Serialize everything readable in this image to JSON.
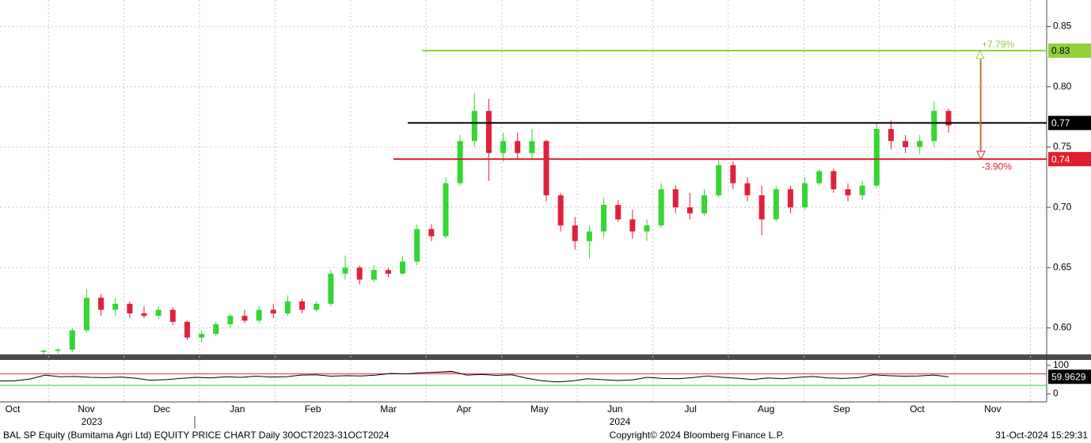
{
  "chart_data": {
    "type": "candlestick",
    "title": "BAL SP Equity (Bumitama Agri Ltd) EQUITY PRICE CHART  Daily 30OCT2023-31OCT2024",
    "source": "Copyright© 2024 Bloomberg Finance L.P.",
    "timestamp": "31-Oct-2024 15:29:31",
    "x_labels": [
      "Oct",
      "Nov",
      "Dec",
      "Jan",
      "Feb",
      "Mar",
      "Apr",
      "May",
      "Jun",
      "Jul",
      "Aug",
      "Sep",
      "Oct",
      "Nov"
    ],
    "years": [
      "2023",
      "2024"
    ],
    "up_color": "#33d633",
    "down_color": "#e0203c",
    "ylim": [
      0.578,
      0.872
    ],
    "yticks": [
      {
        "value": 0.6,
        "label": "0.60"
      },
      0.65,
      {
        "value": 0.7,
        "label": "0.70"
      },
      0.75,
      {
        "value": 0.8,
        "label": "0.80"
      },
      0.85
    ],
    "grid": true,
    "open": [
      0.58,
      0.581,
      0.582,
      0.598,
      0.625,
      0.615,
      0.62,
      0.612,
      0.61,
      0.615,
      0.605,
      0.592,
      0.595,
      0.603,
      0.61,
      0.606,
      0.615,
      0.612,
      0.622,
      0.615,
      0.62,
      0.645,
      0.65,
      0.64,
      0.648,
      0.645,
      0.655,
      0.682,
      0.676,
      0.72,
      0.755,
      0.78,
      0.745,
      0.755,
      0.745,
      0.755,
      0.71,
      0.685,
      0.672,
      0.68,
      0.702,
      0.69,
      0.68,
      0.685,
      0.715,
      0.7,
      0.695,
      0.71,
      0.735,
      0.72,
      0.71,
      0.69,
      0.715,
      0.7,
      0.72,
      0.73,
      0.715,
      0.71,
      0.718,
      0.765,
      0.755,
      0.75,
      0.755,
      0.78
    ],
    "high": [
      0.582,
      0.583,
      0.6,
      0.632,
      0.628,
      0.625,
      0.622,
      0.618,
      0.618,
      0.617,
      0.606,
      0.598,
      0.605,
      0.612,
      0.615,
      0.618,
      0.62,
      0.627,
      0.624,
      0.622,
      0.648,
      0.66,
      0.652,
      0.652,
      0.65,
      0.66,
      0.686,
      0.686,
      0.725,
      0.76,
      0.795,
      0.79,
      0.762,
      0.762,
      0.765,
      0.756,
      0.712,
      0.692,
      0.685,
      0.708,
      0.706,
      0.698,
      0.69,
      0.72,
      0.718,
      0.712,
      0.715,
      0.74,
      0.738,
      0.725,
      0.718,
      0.718,
      0.718,
      0.725,
      0.732,
      0.732,
      0.72,
      0.722,
      0.77,
      0.772,
      0.76,
      0.76,
      0.788,
      0.782
    ],
    "low": [
      0.578,
      0.579,
      0.58,
      0.596,
      0.61,
      0.61,
      0.608,
      0.608,
      0.607,
      0.602,
      0.59,
      0.588,
      0.593,
      0.6,
      0.604,
      0.604,
      0.608,
      0.61,
      0.612,
      0.613,
      0.618,
      0.64,
      0.636,
      0.638,
      0.642,
      0.644,
      0.652,
      0.672,
      0.674,
      0.718,
      0.75,
      0.722,
      0.738,
      0.74,
      0.74,
      0.705,
      0.68,
      0.665,
      0.657,
      0.675,
      0.688,
      0.674,
      0.672,
      0.683,
      0.695,
      0.69,
      0.693,
      0.708,
      0.715,
      0.705,
      0.677,
      0.688,
      0.695,
      0.698,
      0.718,
      0.712,
      0.705,
      0.706,
      0.716,
      0.748,
      0.745,
      0.744,
      0.75,
      0.762
    ],
    "close": [
      0.581,
      0.582,
      0.598,
      0.625,
      0.615,
      0.62,
      0.612,
      0.61,
      0.615,
      0.605,
      0.592,
      0.595,
      0.603,
      0.61,
      0.606,
      0.615,
      0.612,
      0.622,
      0.615,
      0.62,
      0.645,
      0.65,
      0.64,
      0.648,
      0.645,
      0.655,
      0.682,
      0.676,
      0.72,
      0.755,
      0.78,
      0.745,
      0.755,
      0.745,
      0.755,
      0.71,
      0.685,
      0.672,
      0.68,
      0.702,
      0.69,
      0.68,
      0.685,
      0.715,
      0.7,
      0.695,
      0.71,
      0.735,
      0.72,
      0.71,
      0.69,
      0.715,
      0.7,
      0.72,
      0.73,
      0.715,
      0.71,
      0.718,
      0.765,
      0.755,
      0.75,
      0.755,
      0.78,
      0.768
    ],
    "levels": [
      {
        "value": 0.83,
        "label": "0.83",
        "color": "#8fd13a",
        "text_color": "#000000"
      },
      {
        "value": 0.77,
        "label": "0.77",
        "color": "#000000",
        "text_color": "#ffffff"
      },
      {
        "value": 0.74,
        "label": "0.74",
        "color": "#e0202c",
        "text_color": "#ffffff"
      }
    ],
    "annotations": [
      {
        "text": "+7.79%",
        "color": "#8fd13a"
      },
      {
        "text": "-3.90%",
        "color": "#e0202c"
      }
    ],
    "lower_panel": {
      "type": "line",
      "color": "#000000",
      "fill_color": "#f2a8ae",
      "values": [
        45,
        46,
        52,
        66,
        60,
        61,
        58,
        57,
        59,
        55,
        48,
        50,
        54,
        58,
        56,
        60,
        58,
        62,
        59,
        60,
        66,
        67,
        62,
        64,
        63,
        66,
        72,
        70,
        74,
        76,
        79,
        66,
        68,
        65,
        67,
        55,
        46,
        42,
        45,
        53,
        50,
        47,
        49,
        58,
        54,
        53,
        57,
        63,
        58,
        55,
        50,
        56,
        53,
        58,
        61,
        56,
        54,
        57,
        67,
        64,
        62,
        63,
        66,
        59.9629
      ],
      "ylim": [
        -28,
        119
      ],
      "yticks": [
        100,
        0
      ],
      "bands": [
        {
          "value": 70,
          "color": "#e0202c"
        },
        {
          "value": 30,
          "color": "#33cc33"
        }
      ]
    }
  }
}
